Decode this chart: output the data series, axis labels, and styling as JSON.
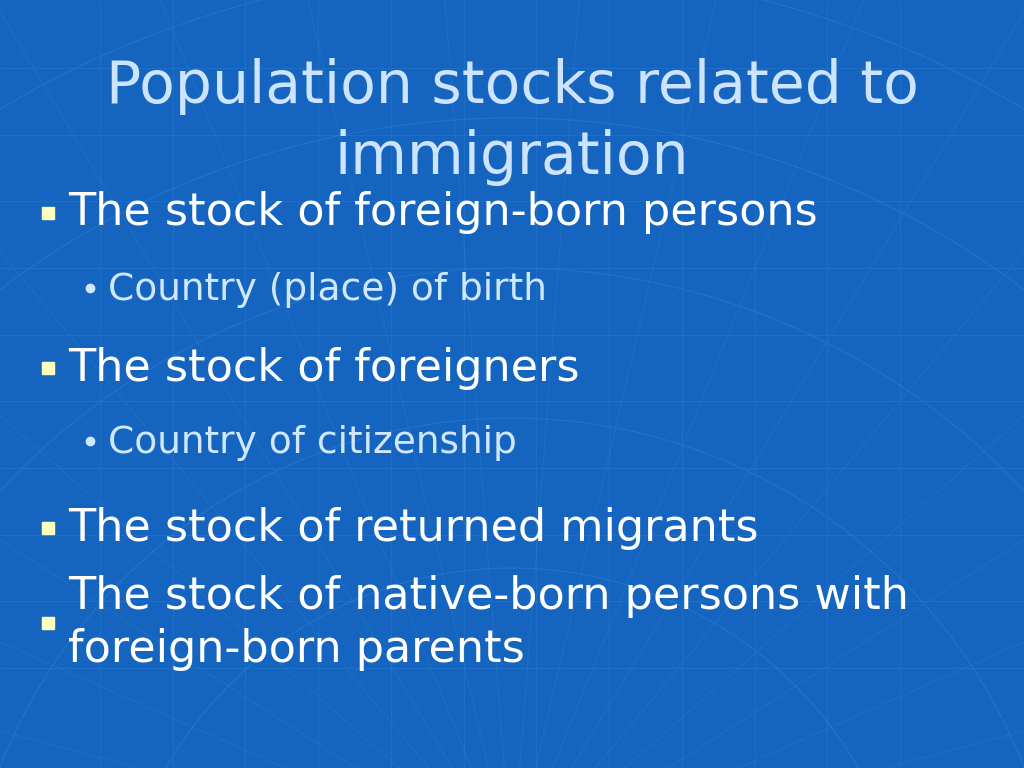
{
  "title_line1": "Population stocks related to",
  "title_line2": "immigration",
  "title_color": "#cce4ff",
  "title_fontsize": 42,
  "bg_color": "#1565C0",
  "bullet_color": "#ffffc0",
  "text_color": "#ffffff",
  "sub_text_color": "#d0e8ff",
  "bullet_items": [
    {
      "text": "The stock of foreign-born persons",
      "level": 0
    },
    {
      "text": "Country (place) of birth",
      "level": 1
    },
    {
      "text": "The stock of foreigners",
      "level": 0
    },
    {
      "text": "Country of citizenship",
      "level": 1
    },
    {
      "text": "The stock of returned migrants",
      "level": 0
    },
    {
      "text": "The stock of native-born persons with\nforeign-born parents",
      "level": 0
    }
  ],
  "main_fontsize": 32,
  "sub_fontsize": 27,
  "grid_color": "#4499dd",
  "grid_alpha": 0.25,
  "arc_color": "#4499dd",
  "arc_alpha": 0.3
}
